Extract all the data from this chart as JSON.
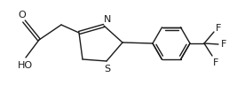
{
  "bg_color": "#ffffff",
  "line_color": "#1a1a1a",
  "line_width": 1.0,
  "font_size": 7.0,
  "figsize": [
    2.74,
    0.94
  ],
  "dpi": 100,
  "xlim": [
    0,
    274
  ],
  "ylim": [
    0,
    94
  ]
}
